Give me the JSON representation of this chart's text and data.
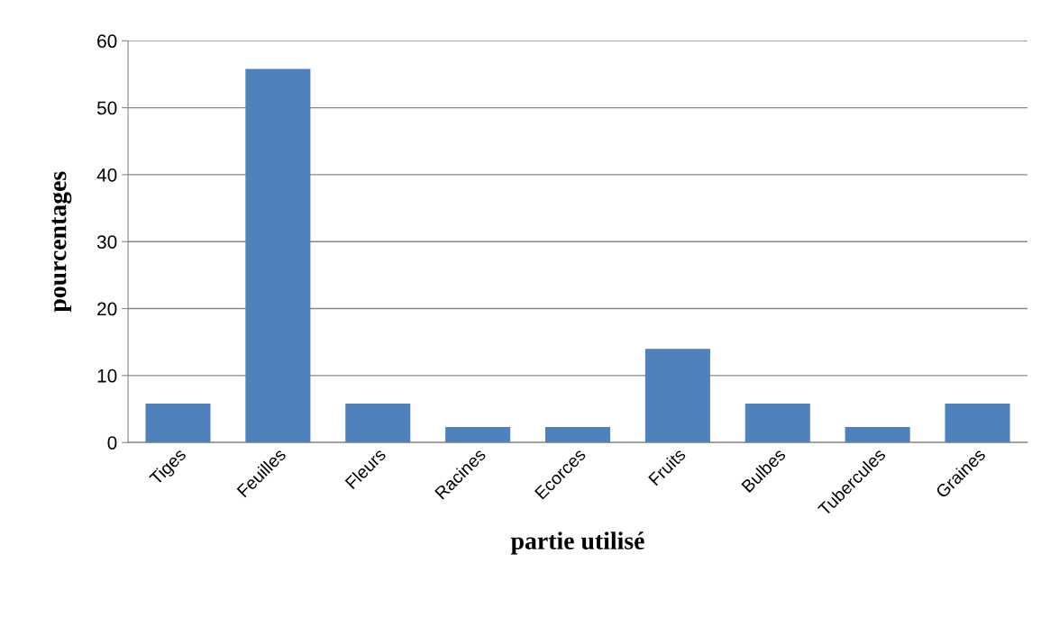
{
  "chart_data": {
    "type": "bar",
    "xlabel": "partie utilisé",
    "ylabel": "pourcentages",
    "categories": [
      "Tiges",
      "Feuilles",
      "Fleurs",
      "Racines",
      "Ecorces",
      "Fruits",
      "Bulbes",
      "Tubercules",
      "Graines"
    ],
    "values": [
      5.8,
      55.8,
      5.8,
      2.3,
      2.3,
      14,
      5.8,
      2.3,
      5.8
    ],
    "color": "#4f81bd",
    "ylim": [
      0,
      60
    ],
    "yticks": [
      0,
      10,
      20,
      30,
      40,
      50,
      60
    ],
    "grid": "y",
    "legend": false
  }
}
